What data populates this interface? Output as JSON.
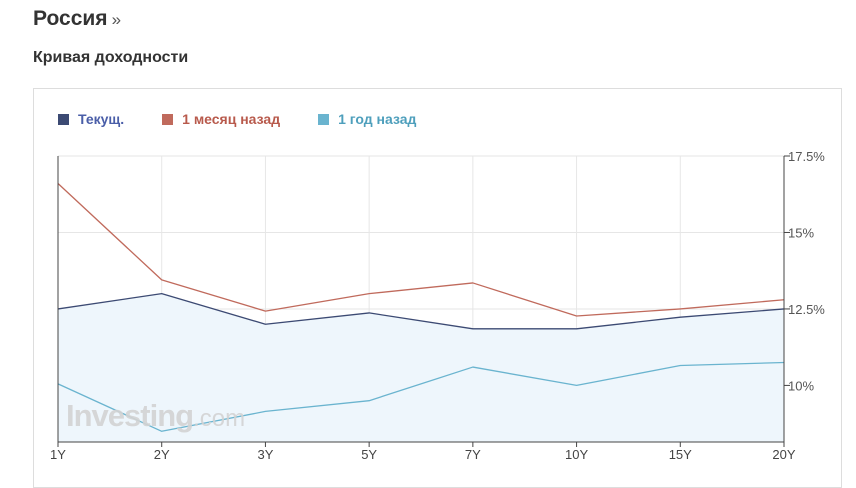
{
  "header": {
    "title": "Россия",
    "title_suffix": "»",
    "subtitle": "Кривая доходности"
  },
  "watermark": {
    "brand": "Investing",
    "suffix": ".com"
  },
  "chart_data": {
    "type": "line",
    "categories": [
      "1Y",
      "2Y",
      "3Y",
      "5Y",
      "7Y",
      "10Y",
      "15Y",
      "20Y"
    ],
    "y_tick_labels": [
      "17.5%",
      "15%",
      "12.5%",
      "10%"
    ],
    "y_ticks": [
      17.5,
      15,
      12.5,
      10
    ],
    "ylim": [
      8.15,
      17.5
    ],
    "y_axis_position": "right",
    "grid": true,
    "legend_position": "top-left",
    "series": [
      {
        "name": "Текущ.",
        "color": "#3c4a73",
        "area_fill": "#eef6fc",
        "label_color": "#4a5ea8",
        "values": [
          12.5,
          13.0,
          12.0,
          12.37,
          11.85,
          11.85,
          12.23,
          12.5
        ]
      },
      {
        "name": "1 месяц назад",
        "color": "#c06a5c",
        "label_color": "#b85a4c",
        "values": [
          16.6,
          13.45,
          12.43,
          13.0,
          13.35,
          12.27,
          12.5,
          12.8
        ]
      },
      {
        "name": "1 год назад",
        "color": "#6ab4cf",
        "label_color": "#4e9fbc",
        "values": [
          10.05,
          8.5,
          9.15,
          9.5,
          10.6,
          10.0,
          10.65,
          10.75
        ]
      }
    ]
  }
}
